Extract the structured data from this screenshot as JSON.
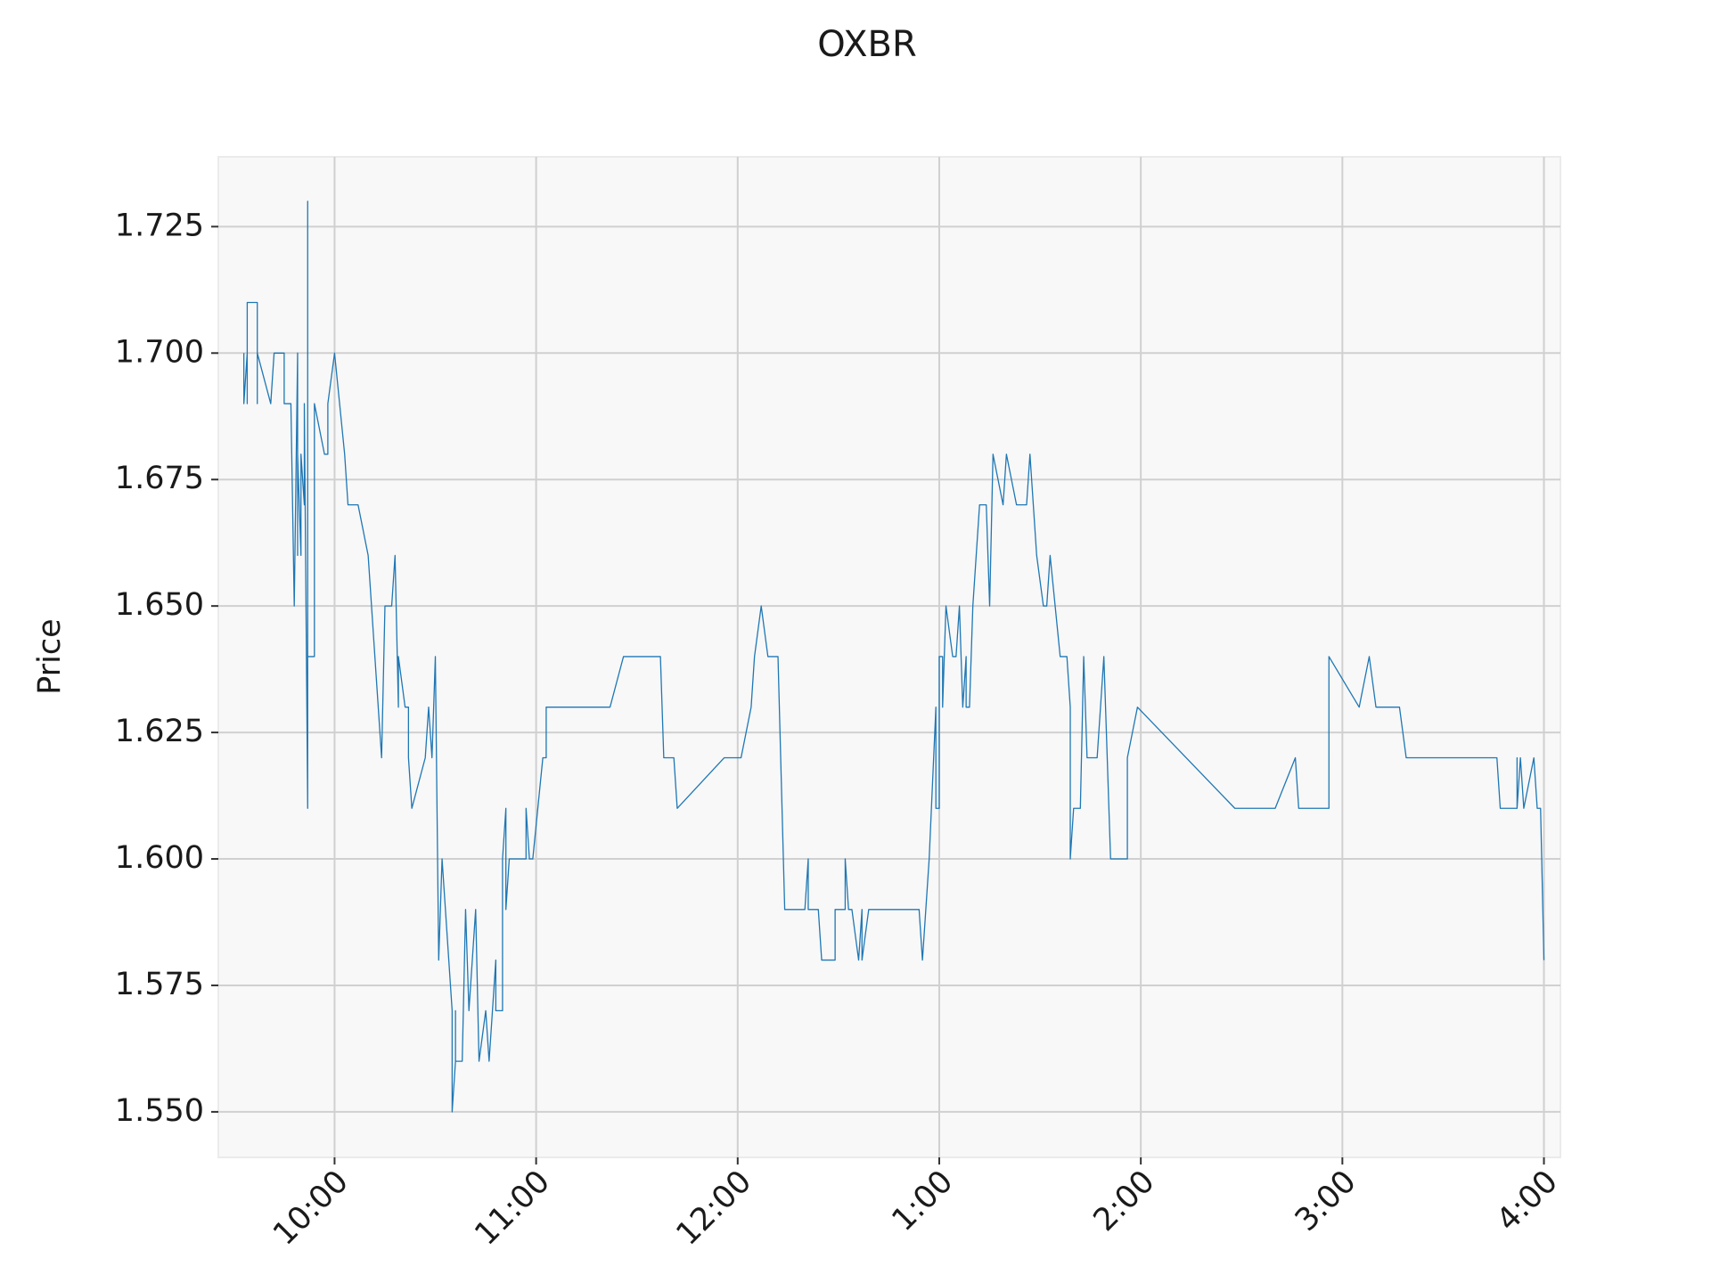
{
  "chart_data": {
    "type": "line",
    "title": "OXBR",
    "y_label": "Price",
    "x": [
      573,
      573,
      574,
      574,
      574,
      577,
      577,
      577,
      577,
      581,
      582,
      585,
      585,
      587,
      588,
      589,
      589,
      589,
      590,
      590,
      591,
      591,
      592,
      592,
      592,
      594,
      594,
      597,
      598,
      598,
      600,
      603,
      604,
      607,
      610,
      611,
      614,
      615,
      617,
      618,
      619,
      619,
      621,
      622,
      622,
      623,
      627,
      628,
      629,
      630,
      630,
      631,
      632,
      634,
      635,
      635,
      636,
      636,
      636,
      638,
      639,
      640,
      641,
      641,
      642,
      643,
      645,
      646,
      648,
      648,
      650,
      650,
      651,
      651,
      652,
      657,
      657,
      658,
      659,
      662,
      663,
      663,
      682,
      686,
      697,
      698,
      701,
      702,
      716,
      721,
      724,
      725,
      727,
      729,
      732,
      734,
      740,
      741,
      741,
      744,
      745,
      749,
      749,
      752,
      752,
      753,
      754,
      756,
      757,
      757,
      759,
      774,
      775,
      777,
      779,
      779,
      780,
      780,
      781,
      781,
      782,
      784,
      785,
      786,
      787,
      788,
      788,
      789,
      790,
      792,
      794,
      795,
      796,
      799,
      800,
      803,
      806,
      807,
      808,
      809,
      811,
      812,
      813,
      816,
      818,
      819,
      819,
      820,
      822,
      823,
      824,
      827,
      829,
      829,
      831,
      836,
      836,
      839,
      868,
      880,
      886,
      887,
      896,
      896,
      905,
      908,
      910,
      917,
      919,
      946,
      947,
      952,
      952,
      952,
      953,
      954,
      957,
      958,
      959,
      960
    ],
    "series": [
      {
        "name": "OXBR",
        "color": "#1f77b4",
        "values": [
          1.7,
          1.69,
          1.7,
          1.69,
          1.71,
          1.71,
          1.69,
          1.7,
          1.7,
          1.69,
          1.7,
          1.7,
          1.69,
          1.69,
          1.65,
          1.7,
          1.66,
          1.68,
          1.66,
          1.68,
          1.67,
          1.69,
          1.61,
          1.73,
          1.64,
          1.64,
          1.69,
          1.68,
          1.68,
          1.69,
          1.7,
          1.68,
          1.67,
          1.67,
          1.66,
          1.65,
          1.62,
          1.65,
          1.65,
          1.66,
          1.63,
          1.64,
          1.63,
          1.63,
          1.62,
          1.61,
          1.62,
          1.63,
          1.62,
          1.64,
          1.64,
          1.58,
          1.6,
          1.58,
          1.57,
          1.55,
          1.56,
          1.57,
          1.56,
          1.56,
          1.59,
          1.57,
          1.58,
          1.58,
          1.59,
          1.56,
          1.57,
          1.56,
          1.58,
          1.57,
          1.57,
          1.6,
          1.61,
          1.59,
          1.6,
          1.6,
          1.61,
          1.6,
          1.6,
          1.62,
          1.62,
          1.63,
          1.63,
          1.64,
          1.64,
          1.62,
          1.62,
          1.61,
          1.62,
          1.62,
          1.63,
          1.64,
          1.65,
          1.64,
          1.64,
          1.59,
          1.59,
          1.6,
          1.59,
          1.59,
          1.58,
          1.58,
          1.59,
          1.59,
          1.6,
          1.59,
          1.59,
          1.58,
          1.59,
          1.58,
          1.59,
          1.59,
          1.58,
          1.6,
          1.63,
          1.61,
          1.61,
          1.64,
          1.64,
          1.63,
          1.65,
          1.64,
          1.64,
          1.65,
          1.63,
          1.64,
          1.63,
          1.63,
          1.65,
          1.67,
          1.67,
          1.65,
          1.68,
          1.67,
          1.68,
          1.67,
          1.67,
          1.68,
          1.67,
          1.66,
          1.65,
          1.65,
          1.66,
          1.64,
          1.64,
          1.63,
          1.6,
          1.61,
          1.61,
          1.64,
          1.62,
          1.62,
          1.64,
          1.64,
          1.6,
          1.6,
          1.62,
          1.63,
          1.61,
          1.61,
          1.62,
          1.61,
          1.61,
          1.64,
          1.63,
          1.64,
          1.63,
          1.63,
          1.62,
          1.62,
          1.61,
          1.61,
          1.62,
          1.61,
          1.62,
          1.61,
          1.62,
          1.61,
          1.61,
          1.58
        ]
      }
    ],
    "xlim": [
      565.4,
      964.9
    ],
    "xticks": [
      {
        "value": 600,
        "label": "10:00"
      },
      {
        "value": 660,
        "label": "11:00"
      },
      {
        "value": 720,
        "label": "12:00"
      },
      {
        "value": 780,
        "label": "1:00"
      },
      {
        "value": 840,
        "label": "2:00"
      },
      {
        "value": 900,
        "label": "3:00"
      },
      {
        "value": 960,
        "label": "4:00"
      }
    ],
    "ylim": [
      1.541,
      1.7388
    ],
    "yticks": [
      {
        "value": 1.55,
        "label": "1.550"
      },
      1.575,
      {
        "value": 1.6,
        "label": "1.600"
      },
      1.625,
      {
        "value": 1.65,
        "label": "1.650"
      },
      1.675,
      {
        "value": 1.7,
        "label": "1.700"
      },
      1.725
    ],
    "grid": true
  }
}
